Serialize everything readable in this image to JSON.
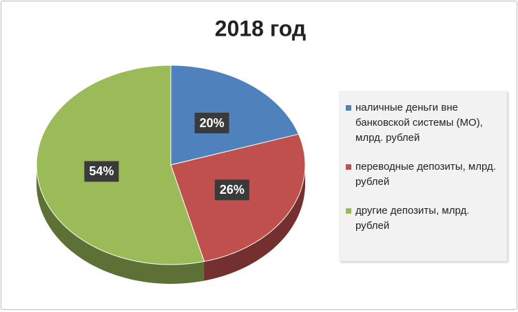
{
  "chart_data": {
    "type": "pie3d",
    "title": "2018 год",
    "categories": [
      "наличные деньги вне банковской системы (МО), млрд. рублей",
      "переводные депозиты, млрд. рублей",
      "другие депозиты, млрд. рублей"
    ],
    "values": [
      20,
      26,
      54
    ],
    "value_labels": [
      "20%",
      "26%",
      "54%"
    ],
    "colors": [
      "#4f81bd",
      "#c0504d",
      "#9bbb59"
    ],
    "legend": "right"
  }
}
